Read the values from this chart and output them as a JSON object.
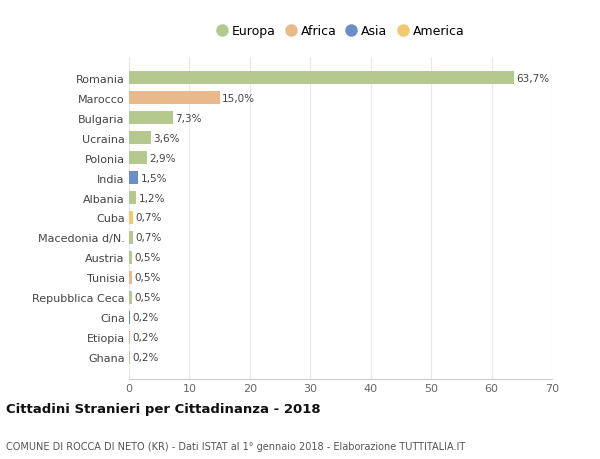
{
  "categories": [
    "Romania",
    "Marocco",
    "Bulgaria",
    "Ucraina",
    "Polonia",
    "India",
    "Albania",
    "Cuba",
    "Macedonia d/N.",
    "Austria",
    "Tunisia",
    "Repubblica Ceca",
    "Cina",
    "Etiopia",
    "Ghana"
  ],
  "values": [
    63.7,
    15.0,
    7.3,
    3.6,
    2.9,
    1.5,
    1.2,
    0.7,
    0.7,
    0.5,
    0.5,
    0.5,
    0.2,
    0.2,
    0.2
  ],
  "labels": [
    "63,7%",
    "15,0%",
    "7,3%",
    "3,6%",
    "2,9%",
    "1,5%",
    "1,2%",
    "0,7%",
    "0,7%",
    "0,5%",
    "0,5%",
    "0,5%",
    "0,2%",
    "0,2%",
    "0,2%"
  ],
  "continents": [
    "Europa",
    "Africa",
    "Europa",
    "Europa",
    "Europa",
    "Asia",
    "Europa",
    "America",
    "Europa",
    "Europa",
    "Africa",
    "Europa",
    "Asia",
    "Africa",
    "Africa"
  ],
  "continent_colors": {
    "Europa": "#b5c98e",
    "Africa": "#e8b98a",
    "Asia": "#6a8fc8",
    "America": "#f0c96e"
  },
  "legend_order": [
    "Europa",
    "Africa",
    "Asia",
    "America"
  ],
  "title": "Cittadini Stranieri per Cittadinanza - 2018",
  "subtitle": "COMUNE DI ROCCA DI NETO (KR) - Dati ISTAT al 1° gennaio 2018 - Elaborazione TUTTITALIA.IT",
  "xlim": [
    0,
    70
  ],
  "xticks": [
    0,
    10,
    20,
    30,
    40,
    50,
    60,
    70
  ],
  "bg_color": "#ffffff",
  "grid_color": "#e8e8e8",
  "bar_height": 0.65
}
